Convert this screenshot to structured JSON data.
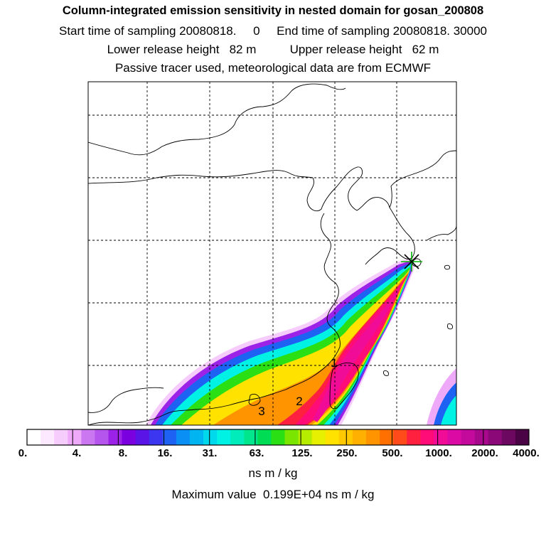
{
  "title": {
    "line1": "Column-integrated emission sensitivity in nested domain for gosan_200808",
    "line2": "Start time of sampling 20080818.     0     End time of sampling 20080818. 30000",
    "line3": "Lower release height   82 m          Upper release height   62 m",
    "line4": "Passive tracer used, meteorological data are from ECMWF"
  },
  "map": {
    "release_site_marker": "star",
    "labels": [
      "1",
      "2",
      "3"
    ]
  },
  "colorbar": {
    "tick_labels": [
      "0.",
      "4.",
      "8.",
      "16.",
      "31.",
      "63.",
      "125.",
      "250.",
      "500.",
      "1000.",
      "2000.",
      "4000."
    ],
    "colors": [
      "#ffffff",
      "#fce8ff",
      "#f6ccfc",
      "#eeaaf8",
      "#cc77f2",
      "#b655ee",
      "#9b22e6",
      "#7b00e0",
      "#5a14e6",
      "#3c36f0",
      "#1e62f4",
      "#0a90f4",
      "#00b4f2",
      "#00d8ec",
      "#00f2e4",
      "#00ecba",
      "#00e68c",
      "#00dc54",
      "#2ae014",
      "#7ae600",
      "#b6ec00",
      "#e6f000",
      "#ffe200",
      "#ffc800",
      "#ffb000",
      "#ff9400",
      "#ff7000",
      "#ff4a1a",
      "#ff2040",
      "#ff0c78",
      "#f00c96",
      "#dc0aa4",
      "#c40a9c",
      "#a8088c",
      "#8a0878",
      "#6c0860",
      "#4a0446"
    ],
    "units": "ns m / kg"
  },
  "max_value": "Maximum value  0.199E+04 ns m / kg"
}
